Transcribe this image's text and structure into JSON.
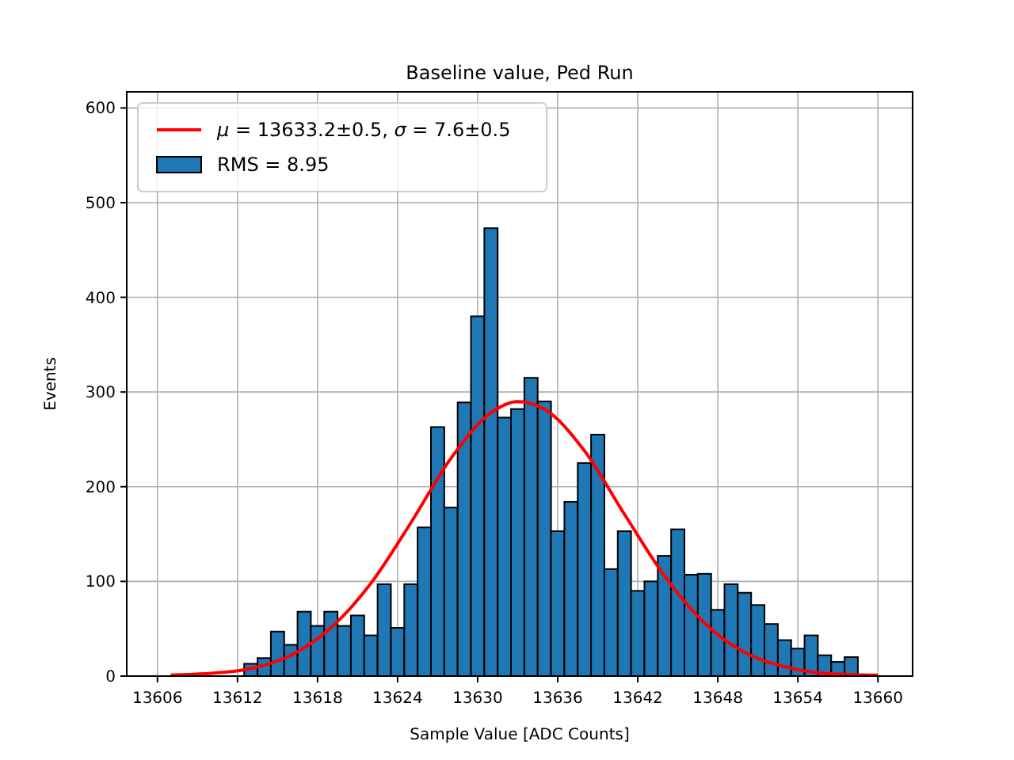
{
  "chart_data": {
    "type": "histogram",
    "title": "Baseline value, Ped Run",
    "xlabel": "Sample Value [ADC Counts]",
    "ylabel": "Events",
    "bins": [
      13612.5,
      13613.5,
      13614.5,
      13615.5,
      13616.5,
      13617.5,
      13618.5,
      13619.5,
      13620.5,
      13621.5,
      13622.5,
      13623.5,
      13624.5,
      13625.5,
      13626.5,
      13627.5,
      13628.5,
      13629.5,
      13630.5,
      13631.5,
      13632.5,
      13633.5,
      13634.5,
      13635.5,
      13636.5,
      13637.5,
      13638.5,
      13639.5,
      13640.5,
      13641.5,
      13642.5,
      13643.5,
      13644.5,
      13645.5,
      13646.5,
      13647.5,
      13648.5,
      13649.5,
      13650.5,
      13651.5,
      13652.5,
      13653.5,
      13654.5,
      13655.5,
      13656.5,
      13657.5,
      13658.5
    ],
    "series": [
      {
        "type": "line",
        "name": "μ = 13633.2±0.5, σ = 7.6±0.5",
        "color": "#ff0000",
        "x": [
          13607,
          13610,
          13613,
          13616,
          13619,
          13622,
          13625,
          13628,
          13631,
          13633,
          13635,
          13638,
          13641,
          13644,
          13647,
          13650,
          13653,
          13656,
          13660
        ],
        "values": [
          1,
          3,
          8,
          22,
          51,
          98,
          162,
          230,
          278,
          290,
          282,
          238,
          171,
          106,
          56,
          25,
          10,
          3,
          1
        ]
      },
      {
        "name": "RMS = 8.95",
        "color": "#1f77b4",
        "values": [
          13,
          19,
          47,
          33,
          68,
          53,
          68,
          53,
          64,
          43,
          97,
          51,
          97,
          157,
          263,
          178,
          289,
          380,
          473,
          273,
          282,
          315,
          290,
          153,
          184,
          225,
          255,
          113,
          153,
          90,
          100,
          127,
          155,
          107,
          108,
          70,
          97,
          88,
          75,
          55,
          38,
          29,
          43,
          22,
          15,
          20
        ]
      }
    ],
    "xlim": [
      13603.7,
      13662.6
    ],
    "ylim": [
      0,
      617
    ],
    "xticks": [
      13606,
      13612,
      13618,
      13624,
      13630,
      13636,
      13642,
      13648,
      13654,
      13660
    ],
    "yticks": [
      0,
      100,
      200,
      300,
      400,
      500,
      600
    ],
    "grid": true,
    "legend": "top left"
  }
}
